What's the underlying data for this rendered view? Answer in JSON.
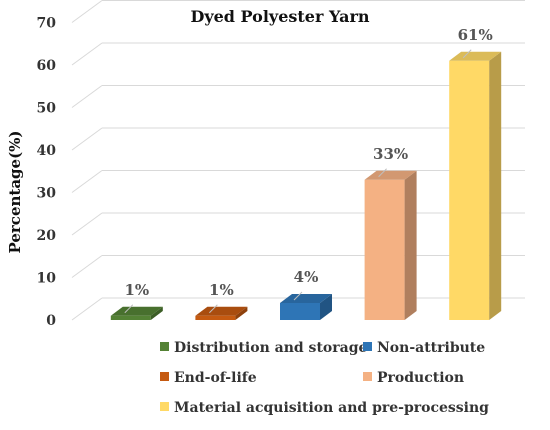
{
  "chart_data": {
    "type": "bar",
    "title": "Dyed Polyester Yarn",
    "xlabel": "",
    "ylabel": "Percentage(%)",
    "ylim": [
      0,
      70
    ],
    "yticks": [
      "0",
      "10",
      "20",
      "30",
      "40",
      "50",
      "60",
      "70"
    ],
    "grid": true,
    "legend_position": "bottom",
    "categories": [
      "Distribution and storage",
      "End-of-life",
      "Non-attribute",
      "Production",
      "Material acquisition and pre-processing"
    ],
    "values": [
      1,
      1,
      4,
      33,
      61
    ],
    "data_labels": [
      "1%",
      "1%",
      "4%",
      "33%",
      "61%"
    ],
    "colors": [
      "#548235",
      "#C55A11",
      "#2E75B6",
      "#F4B183",
      "#FFD966"
    ],
    "legend": [
      "Distribution and storage",
      "Non-attribute",
      "End-of-life",
      "Production",
      "Material acquisition and pre-processing"
    ],
    "legend_colors": [
      "#548235",
      "#2E75B6",
      "#C55A11",
      "#F4B183",
      "#FFD966"
    ]
  }
}
